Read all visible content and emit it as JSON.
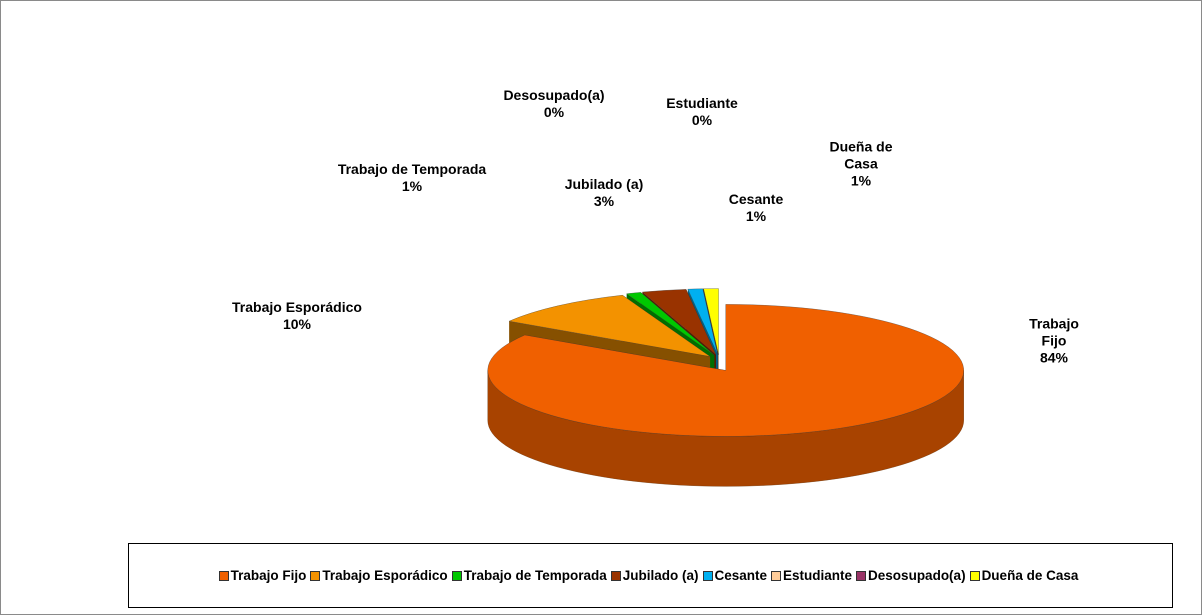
{
  "chart_data": {
    "type": "pie3d",
    "categories": [
      "Trabajo Fijo",
      "Trabajo Esporádico",
      "Trabajo de Temporada",
      "Jubilado (a)",
      "Cesante",
      "Estudiante",
      "Desosupado(a)",
      "Dueña de Casa"
    ],
    "values": [
      84,
      10,
      1,
      3,
      1,
      0,
      0,
      1
    ],
    "value_labels": [
      "84%",
      "10%",
      "1%",
      "3%",
      "1%",
      "0%",
      "0%",
      "1%"
    ],
    "colors": [
      "#f06000",
      "#f39200",
      "#00c800",
      "#993300",
      "#00b0f0",
      "#ffcc99",
      "#993366",
      "#ffff00"
    ],
    "legend": "bottom"
  }
}
